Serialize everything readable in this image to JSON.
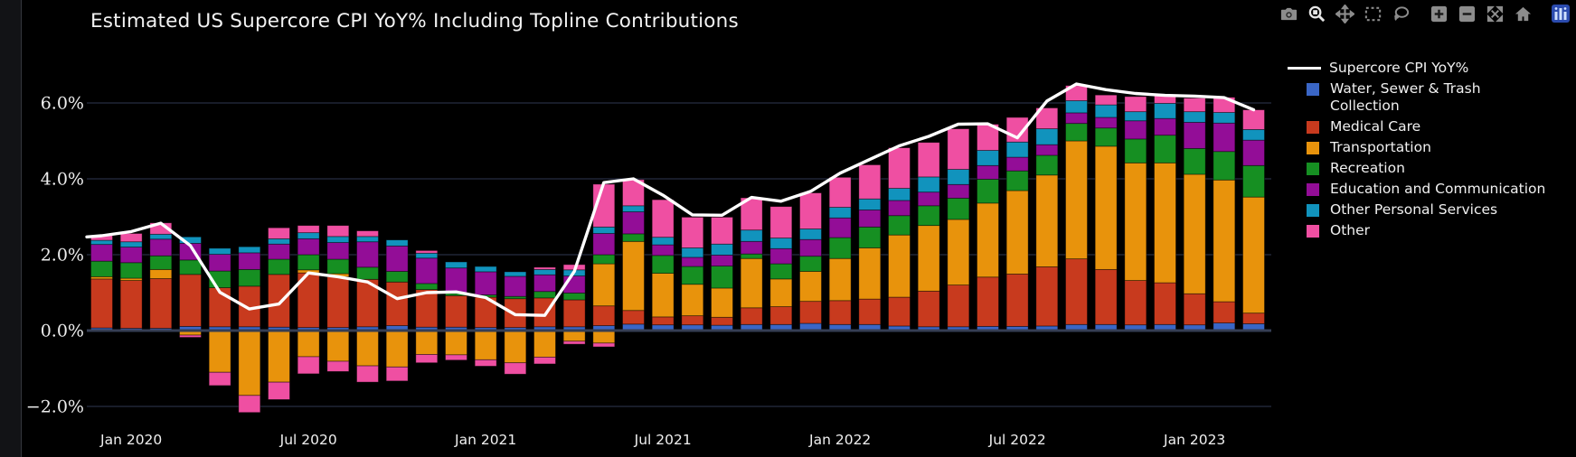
{
  "header": {
    "title": "Estimated US Supercore CPI YoY% Including Topline Contributions"
  },
  "toolbar": {
    "items": [
      {
        "icon": "camera-icon",
        "active": false
      },
      {
        "icon": "zoom-icon",
        "active": true
      },
      {
        "icon": "pan-icon",
        "active": false
      },
      {
        "icon": "box-select-icon",
        "active": false
      },
      {
        "icon": "lasso-select-icon",
        "active": false
      },
      {
        "icon": "zoom-in-icon",
        "active": false
      },
      {
        "icon": "zoom-out-icon",
        "active": false
      },
      {
        "icon": "autoscale-icon",
        "active": false
      },
      {
        "icon": "home-icon",
        "active": false
      },
      {
        "icon": "plotly-logo-icon",
        "active": false
      }
    ]
  },
  "legend": {
    "items": [
      {
        "label": "Supercore CPI YoY%",
        "type": "line",
        "color": "#ffffff"
      },
      {
        "label": "Water, Sewer & Trash\nCollection",
        "type": "swatch",
        "color": "#3a66c6"
      },
      {
        "label": "Medical Care",
        "type": "swatch",
        "color": "#c83a1e"
      },
      {
        "label": "Transportation",
        "type": "swatch",
        "color": "#e8930c"
      },
      {
        "label": "Recreation",
        "type": "swatch",
        "color": "#168f22"
      },
      {
        "label": "Education and Communication",
        "type": "swatch",
        "color": "#930d97"
      },
      {
        "label": "Other Personal Services",
        "type": "swatch",
        "color": "#1193bd"
      },
      {
        "label": "Other",
        "type": "swatch",
        "color": "#ef4fa2"
      }
    ]
  },
  "chart_data": {
    "type": "bar",
    "stacked": true,
    "title": "Estimated US Supercore CPI YoY% Including Topline Contributions",
    "xlabel": "",
    "ylabel": "",
    "ylim": [
      -2.6,
      6.9
    ],
    "grid": "horizontal",
    "legend_position": "right",
    "background": "#000000",
    "grid_color": "#262e42",
    "zero_line_color": "#353e54",
    "categories": [
      "Dec 2019",
      "Jan 2020",
      "Feb 2020",
      "Mar 2020",
      "Apr 2020",
      "May 2020",
      "Jun 2020",
      "Jul 2020",
      "Aug 2020",
      "Sep 2020",
      "Oct 2020",
      "Nov 2020",
      "Dec 2020",
      "Jan 2021",
      "Feb 2021",
      "Mar 2021",
      "Apr 2021",
      "May 2021",
      "Jun 2021",
      "Jul 2021",
      "Aug 2021",
      "Sep 2021",
      "Oct 2021",
      "Nov 2021",
      "Dec 2021",
      "Jan 2022",
      "Feb 2022",
      "Mar 2022",
      "Apr 2022",
      "May 2022",
      "Jun 2022",
      "Jul 2022",
      "Aug 2022",
      "Sep 2022",
      "Oct 2022",
      "Nov 2022",
      "Dec 2022",
      "Jan 2023",
      "Feb 2023",
      "Mar 2023"
    ],
    "series": [
      {
        "name": "Water, Sewer & Trash Collection",
        "color": "#3a66c6",
        "values": [
          0.07,
          0.06,
          0.06,
          0.11,
          0.1,
          0.1,
          0.09,
          0.08,
          0.08,
          0.1,
          0.13,
          0.09,
          0.09,
          0.08,
          0.08,
          0.1,
          0.1,
          0.13,
          0.17,
          0.15,
          0.15,
          0.14,
          0.16,
          0.16,
          0.19,
          0.16,
          0.16,
          0.12,
          0.1,
          0.1,
          0.11,
          0.11,
          0.12,
          0.16,
          0.16,
          0.15,
          0.16,
          0.15,
          0.2,
          0.18
        ]
      },
      {
        "name": "Medical Care",
        "color": "#c83a1e",
        "values": [
          1.29,
          1.26,
          1.31,
          1.37,
          1.03,
          1.07,
          1.39,
          1.44,
          1.34,
          1.25,
          1.15,
          0.99,
          0.83,
          0.8,
          0.76,
          0.76,
          0.71,
          0.52,
          0.36,
          0.21,
          0.24,
          0.21,
          0.44,
          0.47,
          0.58,
          0.63,
          0.67,
          0.76,
          0.94,
          1.1,
          1.3,
          1.38,
          1.56,
          1.73,
          1.45,
          1.17,
          1.1,
          0.82,
          0.56,
          0.28
        ]
      },
      {
        "name": "Transportation",
        "color": "#e8930c",
        "values": [
          0.06,
          0.06,
          0.24,
          0,
          0,
          0,
          0,
          0.08,
          0.08,
          0,
          0,
          0,
          0,
          0,
          0,
          0,
          0,
          1.11,
          1.82,
          1.15,
          0.83,
          0.77,
          1.3,
          0.73,
          0.79,
          1.11,
          1.35,
          1.64,
          1.73,
          1.73,
          1.95,
          2.2,
          2.42,
          3.11,
          3.25,
          3.1,
          3.16,
          3.15,
          3.21,
          3.06
        ]
      },
      {
        "name": "Recreation",
        "color": "#168f22",
        "values": [
          0.41,
          0.41,
          0.36,
          0.38,
          0.44,
          0.44,
          0.4,
          0.4,
          0.38,
          0.32,
          0.28,
          0.16,
          0.06,
          0.06,
          0.06,
          0.17,
          0.18,
          0.24,
          0.2,
          0.47,
          0.47,
          0.58,
          0.12,
          0.4,
          0.4,
          0.55,
          0.55,
          0.51,
          0.52,
          0.56,
          0.63,
          0.52,
          0.52,
          0.46,
          0.48,
          0.63,
          0.73,
          0.68,
          0.75,
          0.83
        ]
      },
      {
        "name": "Education and Communication",
        "color": "#930d97",
        "values": [
          0.44,
          0.41,
          0.44,
          0.44,
          0.44,
          0.44,
          0.4,
          0.42,
          0.44,
          0.67,
          0.67,
          0.67,
          0.67,
          0.61,
          0.53,
          0.44,
          0.45,
          0.56,
          0.58,
          0.28,
          0.24,
          0.29,
          0.33,
          0.4,
          0.44,
          0.52,
          0.45,
          0.4,
          0.36,
          0.36,
          0.36,
          0.36,
          0.28,
          0.28,
          0.28,
          0.48,
          0.44,
          0.69,
          0.75,
          0.67
        ]
      },
      {
        "name": "Other Personal Services",
        "color": "#1193bd",
        "values": [
          0.11,
          0.14,
          0.13,
          0.17,
          0.16,
          0.16,
          0.14,
          0.16,
          0.16,
          0.14,
          0.16,
          0.13,
          0.16,
          0.14,
          0.12,
          0.14,
          0.16,
          0.17,
          0.16,
          0.2,
          0.25,
          0.29,
          0.3,
          0.28,
          0.28,
          0.28,
          0.29,
          0.32,
          0.4,
          0.4,
          0.4,
          0.4,
          0.42,
          0.32,
          0.33,
          0.24,
          0.4,
          0.28,
          0.28,
          0.28
        ]
      },
      {
        "name": "Other",
        "color": "#ef4fa2",
        "values": [
          0.13,
          0.22,
          0.3,
          0,
          0,
          0,
          0.29,
          0.19,
          0.29,
          0.15,
          0,
          0.07,
          0,
          0,
          0,
          0.06,
          0.14,
          1.13,
          0.69,
          0.99,
          0.81,
          0.71,
          0.85,
          0.83,
          0.95,
          0.79,
          0.9,
          1.07,
          0.91,
          1.07,
          0.69,
          0.65,
          0.55,
          0.4,
          0.26,
          0.4,
          0.21,
          0.36,
          0.4,
          0.52
        ]
      }
    ],
    "negative_series": [
      {
        "name": "Transportation",
        "color": "#e8930c",
        "values": [
          0,
          0,
          0,
          -0.12,
          -1.1,
          -1.71,
          -1.36,
          -0.69,
          -0.81,
          -0.93,
          -0.96,
          -0.63,
          -0.64,
          -0.77,
          -0.85,
          -0.7,
          -0.28,
          -0.33,
          0,
          0,
          0,
          0,
          0,
          0,
          0,
          0,
          0,
          0,
          0,
          0,
          0,
          0,
          0,
          0,
          0,
          0,
          0,
          0,
          0,
          0
        ]
      },
      {
        "name": "Other",
        "color": "#ef4fa2",
        "values": [
          0,
          0,
          0,
          -0.06,
          -0.35,
          -0.45,
          -0.46,
          -0.45,
          -0.27,
          -0.43,
          -0.37,
          -0.22,
          -0.14,
          -0.17,
          -0.3,
          -0.18,
          -0.08,
          -0.1,
          0,
          0,
          0,
          0,
          0,
          0,
          0,
          0,
          0,
          0,
          0,
          0,
          0,
          0,
          0,
          0,
          0,
          0,
          0,
          0,
          0,
          0
        ]
      }
    ],
    "line_series": {
      "name": "Supercore CPI YoY%",
      "color": "#ffffff",
      "values": [
        2.5,
        2.61,
        2.83,
        2.24,
        1.01,
        0.57,
        0.7,
        1.52,
        1.42,
        1.28,
        0.84,
        1.0,
        1.02,
        0.87,
        0.42,
        0.4,
        1.56,
        3.9,
        4.0,
        3.57,
        3.05,
        3.04,
        3.51,
        3.41,
        3.67,
        4.15,
        4.51,
        4.87,
        5.12,
        5.44,
        5.45,
        5.08,
        6.05,
        6.5,
        6.35,
        6.25,
        6.2,
        6.18,
        6.14,
        5.82
      ]
    },
    "y_ticks": [
      {
        "label": "6.0%",
        "value": 6
      },
      {
        "label": "4.0%",
        "value": 4
      },
      {
        "label": "2.0%",
        "value": 2
      },
      {
        "label": "0.0%",
        "value": 0
      },
      {
        "label": "−2.0%",
        "value": -2
      }
    ],
    "x_ticks": [
      {
        "label": "Jan 2020",
        "month_index": 1
      },
      {
        "label": "Jul 2020",
        "month_index": 7
      },
      {
        "label": "Jan 2021",
        "month_index": 13
      },
      {
        "label": "Jul 2021",
        "month_index": 19
      },
      {
        "label": "Jan 2022",
        "month_index": 25
      },
      {
        "label": "Jul 2022",
        "month_index": 31
      },
      {
        "label": "Jan 2023",
        "month_index": 37
      }
    ]
  }
}
